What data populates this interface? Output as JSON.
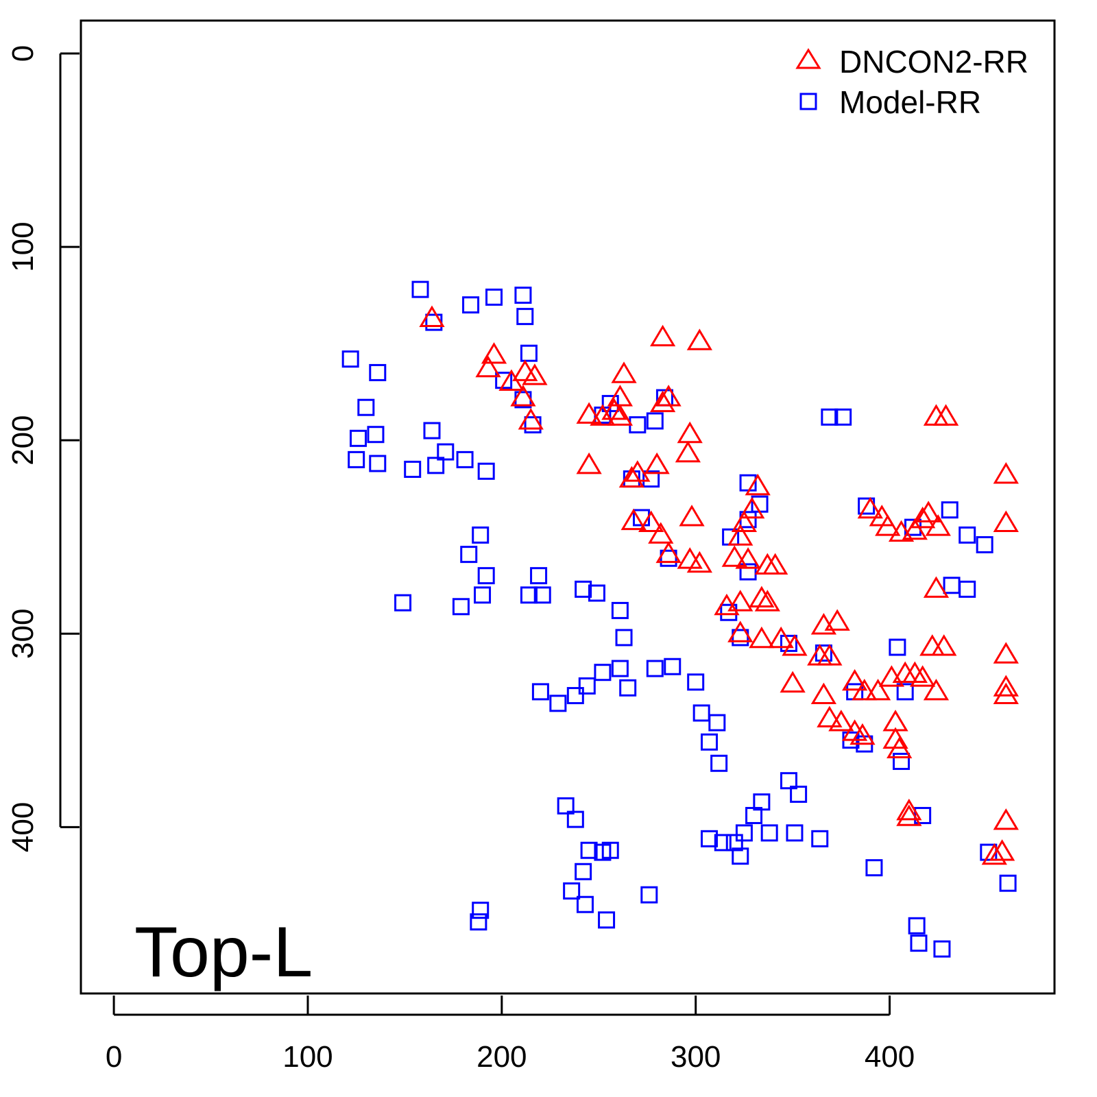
{
  "chart_data": {
    "type": "scatter",
    "title": "",
    "xlabel": "",
    "ylabel": "",
    "xlim": [
      -17,
      485
    ],
    "ylim": [
      -17,
      486
    ],
    "y_inverted": true,
    "grid": false,
    "x_ticks": [
      0,
      100,
      200,
      300,
      400
    ],
    "y_ticks": [
      0,
      100,
      200,
      300,
      400
    ],
    "x_tick_labels": [
      "0",
      "100",
      "200",
      "300",
      "400"
    ],
    "y_tick_labels": [
      "0",
      "100",
      "200",
      "300",
      "400"
    ],
    "annotation": "Top-L",
    "legend_position": "top-right",
    "series": [
      {
        "name": "DNCON2-RR",
        "marker": "triangle",
        "color": "#ff0000",
        "points": [
          [
            164,
            137
          ],
          [
            196,
            156
          ],
          [
            193,
            163
          ],
          [
            212,
            165
          ],
          [
            205,
            170
          ],
          [
            217,
            167
          ],
          [
            211,
            178
          ],
          [
            215,
            190
          ],
          [
            283,
            147
          ],
          [
            302,
            149
          ],
          [
            263,
            166
          ],
          [
            261,
            178
          ],
          [
            258,
            185
          ],
          [
            245,
            187
          ],
          [
            252,
            188
          ],
          [
            261,
            188
          ],
          [
            286,
            178
          ],
          [
            283,
            181
          ],
          [
            297,
            197
          ],
          [
            296,
            207
          ],
          [
            245,
            213
          ],
          [
            267,
            220
          ],
          [
            270,
            217
          ],
          [
            280,
            213
          ],
          [
            298,
            240
          ],
          [
            268,
            242
          ],
          [
            277,
            243
          ],
          [
            282,
            249
          ],
          [
            286,
            259
          ],
          [
            297,
            262
          ],
          [
            302,
            264
          ],
          [
            332,
            224
          ],
          [
            329,
            236
          ],
          [
            325,
            243
          ],
          [
            323,
            250
          ],
          [
            320,
            261
          ],
          [
            327,
            262
          ],
          [
            337,
            265
          ],
          [
            341,
            265
          ],
          [
            316,
            286
          ],
          [
            323,
            284
          ],
          [
            334,
            282
          ],
          [
            337,
            284
          ],
          [
            323,
            300
          ],
          [
            334,
            303
          ],
          [
            344,
            303
          ],
          [
            351,
            307
          ],
          [
            366,
            296
          ],
          [
            373,
            294
          ],
          [
            350,
            326
          ],
          [
            366,
            332
          ],
          [
            364,
            312
          ],
          [
            369,
            312
          ],
          [
            369,
            344
          ],
          [
            375,
            346
          ],
          [
            382,
            351
          ],
          [
            386,
            353
          ],
          [
            382,
            325
          ],
          [
            387,
            330
          ],
          [
            394,
            330
          ],
          [
            401,
            323
          ],
          [
            408,
            321
          ],
          [
            413,
            321
          ],
          [
            417,
            323
          ],
          [
            424,
            330
          ],
          [
            403,
            346
          ],
          [
            403,
            355
          ],
          [
            405,
            360
          ],
          [
            422,
            307
          ],
          [
            428,
            307
          ],
          [
            424,
            277
          ],
          [
            390,
            236
          ],
          [
            396,
            240
          ],
          [
            399,
            245
          ],
          [
            406,
            248
          ],
          [
            413,
            247
          ],
          [
            417,
            241
          ],
          [
            420,
            238
          ],
          [
            425,
            245
          ],
          [
            424,
            188
          ],
          [
            429,
            188
          ],
          [
            460,
            218
          ],
          [
            460,
            243
          ],
          [
            460,
            311
          ],
          [
            460,
            328
          ],
          [
            460,
            332
          ],
          [
            460,
            397
          ],
          [
            410,
            392
          ],
          [
            410,
            395
          ],
          [
            454,
            415
          ],
          [
            458,
            413
          ]
        ]
      },
      {
        "name": "Model-RR",
        "marker": "square",
        "color": "#0000ff",
        "points": [
          [
            158,
            122
          ],
          [
            196,
            126
          ],
          [
            211,
            125
          ],
          [
            212,
            136
          ],
          [
            184,
            130
          ],
          [
            165,
            139
          ],
          [
            122,
            158
          ],
          [
            136,
            165
          ],
          [
            130,
            183
          ],
          [
            126,
            199
          ],
          [
            135,
            197
          ],
          [
            125,
            210
          ],
          [
            136,
            212
          ],
          [
            154,
            215
          ],
          [
            164,
            195
          ],
          [
            166,
            213
          ],
          [
            171,
            206
          ],
          [
            181,
            210
          ],
          [
            192,
            216
          ],
          [
            214,
            155
          ],
          [
            201,
            169
          ],
          [
            211,
            179
          ],
          [
            216,
            192
          ],
          [
            252,
            187
          ],
          [
            256,
            181
          ],
          [
            270,
            192
          ],
          [
            279,
            190
          ],
          [
            284,
            178
          ],
          [
            369,
            188
          ],
          [
            376,
            188
          ],
          [
            388,
            234
          ],
          [
            412,
            245
          ],
          [
            431,
            236
          ],
          [
            440,
            249
          ],
          [
            449,
            254
          ],
          [
            440,
            277
          ],
          [
            432,
            275
          ],
          [
            267,
            220
          ],
          [
            277,
            220
          ],
          [
            272,
            240
          ],
          [
            286,
            261
          ],
          [
            318,
            250
          ],
          [
            317,
            289
          ],
          [
            327,
            222
          ],
          [
            333,
            233
          ],
          [
            327,
            241
          ],
          [
            327,
            268
          ],
          [
            189,
            249
          ],
          [
            183,
            259
          ],
          [
            179,
            286
          ],
          [
            190,
            280
          ],
          [
            192,
            270
          ],
          [
            149,
            284
          ],
          [
            219,
            270
          ],
          [
            221,
            280
          ],
          [
            214,
            280
          ],
          [
            242,
            277
          ],
          [
            249,
            279
          ],
          [
            261,
            288
          ],
          [
            263,
            302
          ],
          [
            279,
            318
          ],
          [
            288,
            317
          ],
          [
            220,
            330
          ],
          [
            229,
            336
          ],
          [
            238,
            332
          ],
          [
            244,
            327
          ],
          [
            252,
            320
          ],
          [
            261,
            318
          ],
          [
            265,
            328
          ],
          [
            300,
            325
          ],
          [
            303,
            341
          ],
          [
            311,
            346
          ],
          [
            307,
            356
          ],
          [
            312,
            367
          ],
          [
            323,
            302
          ],
          [
            348,
            305
          ],
          [
            366,
            310
          ],
          [
            382,
            330
          ],
          [
            387,
            357
          ],
          [
            380,
            355
          ],
          [
            408,
            330
          ],
          [
            406,
            366
          ],
          [
            404,
            307
          ],
          [
            233,
            389
          ],
          [
            238,
            396
          ],
          [
            242,
            423
          ],
          [
            236,
            433
          ],
          [
            245,
            412
          ],
          [
            252,
            413
          ],
          [
            256,
            412
          ],
          [
            243,
            440
          ],
          [
            254,
            448
          ],
          [
            276,
            435
          ],
          [
            189,
            443
          ],
          [
            188,
            449
          ],
          [
            307,
            406
          ],
          [
            320,
            408
          ],
          [
            325,
            403
          ],
          [
            330,
            394
          ],
          [
            334,
            387
          ],
          [
            338,
            403
          ],
          [
            348,
            376
          ],
          [
            353,
            383
          ],
          [
            351,
            403
          ],
          [
            364,
            406
          ],
          [
            392,
            421
          ],
          [
            414,
            451
          ],
          [
            415,
            460
          ],
          [
            427,
            463
          ],
          [
            417,
            394
          ],
          [
            451,
            413
          ],
          [
            461,
            429
          ],
          [
            314,
            408
          ],
          [
            323,
            415
          ]
        ]
      }
    ]
  },
  "legend": {
    "items": [
      "DNCON2-RR",
      "Model-RR"
    ]
  }
}
